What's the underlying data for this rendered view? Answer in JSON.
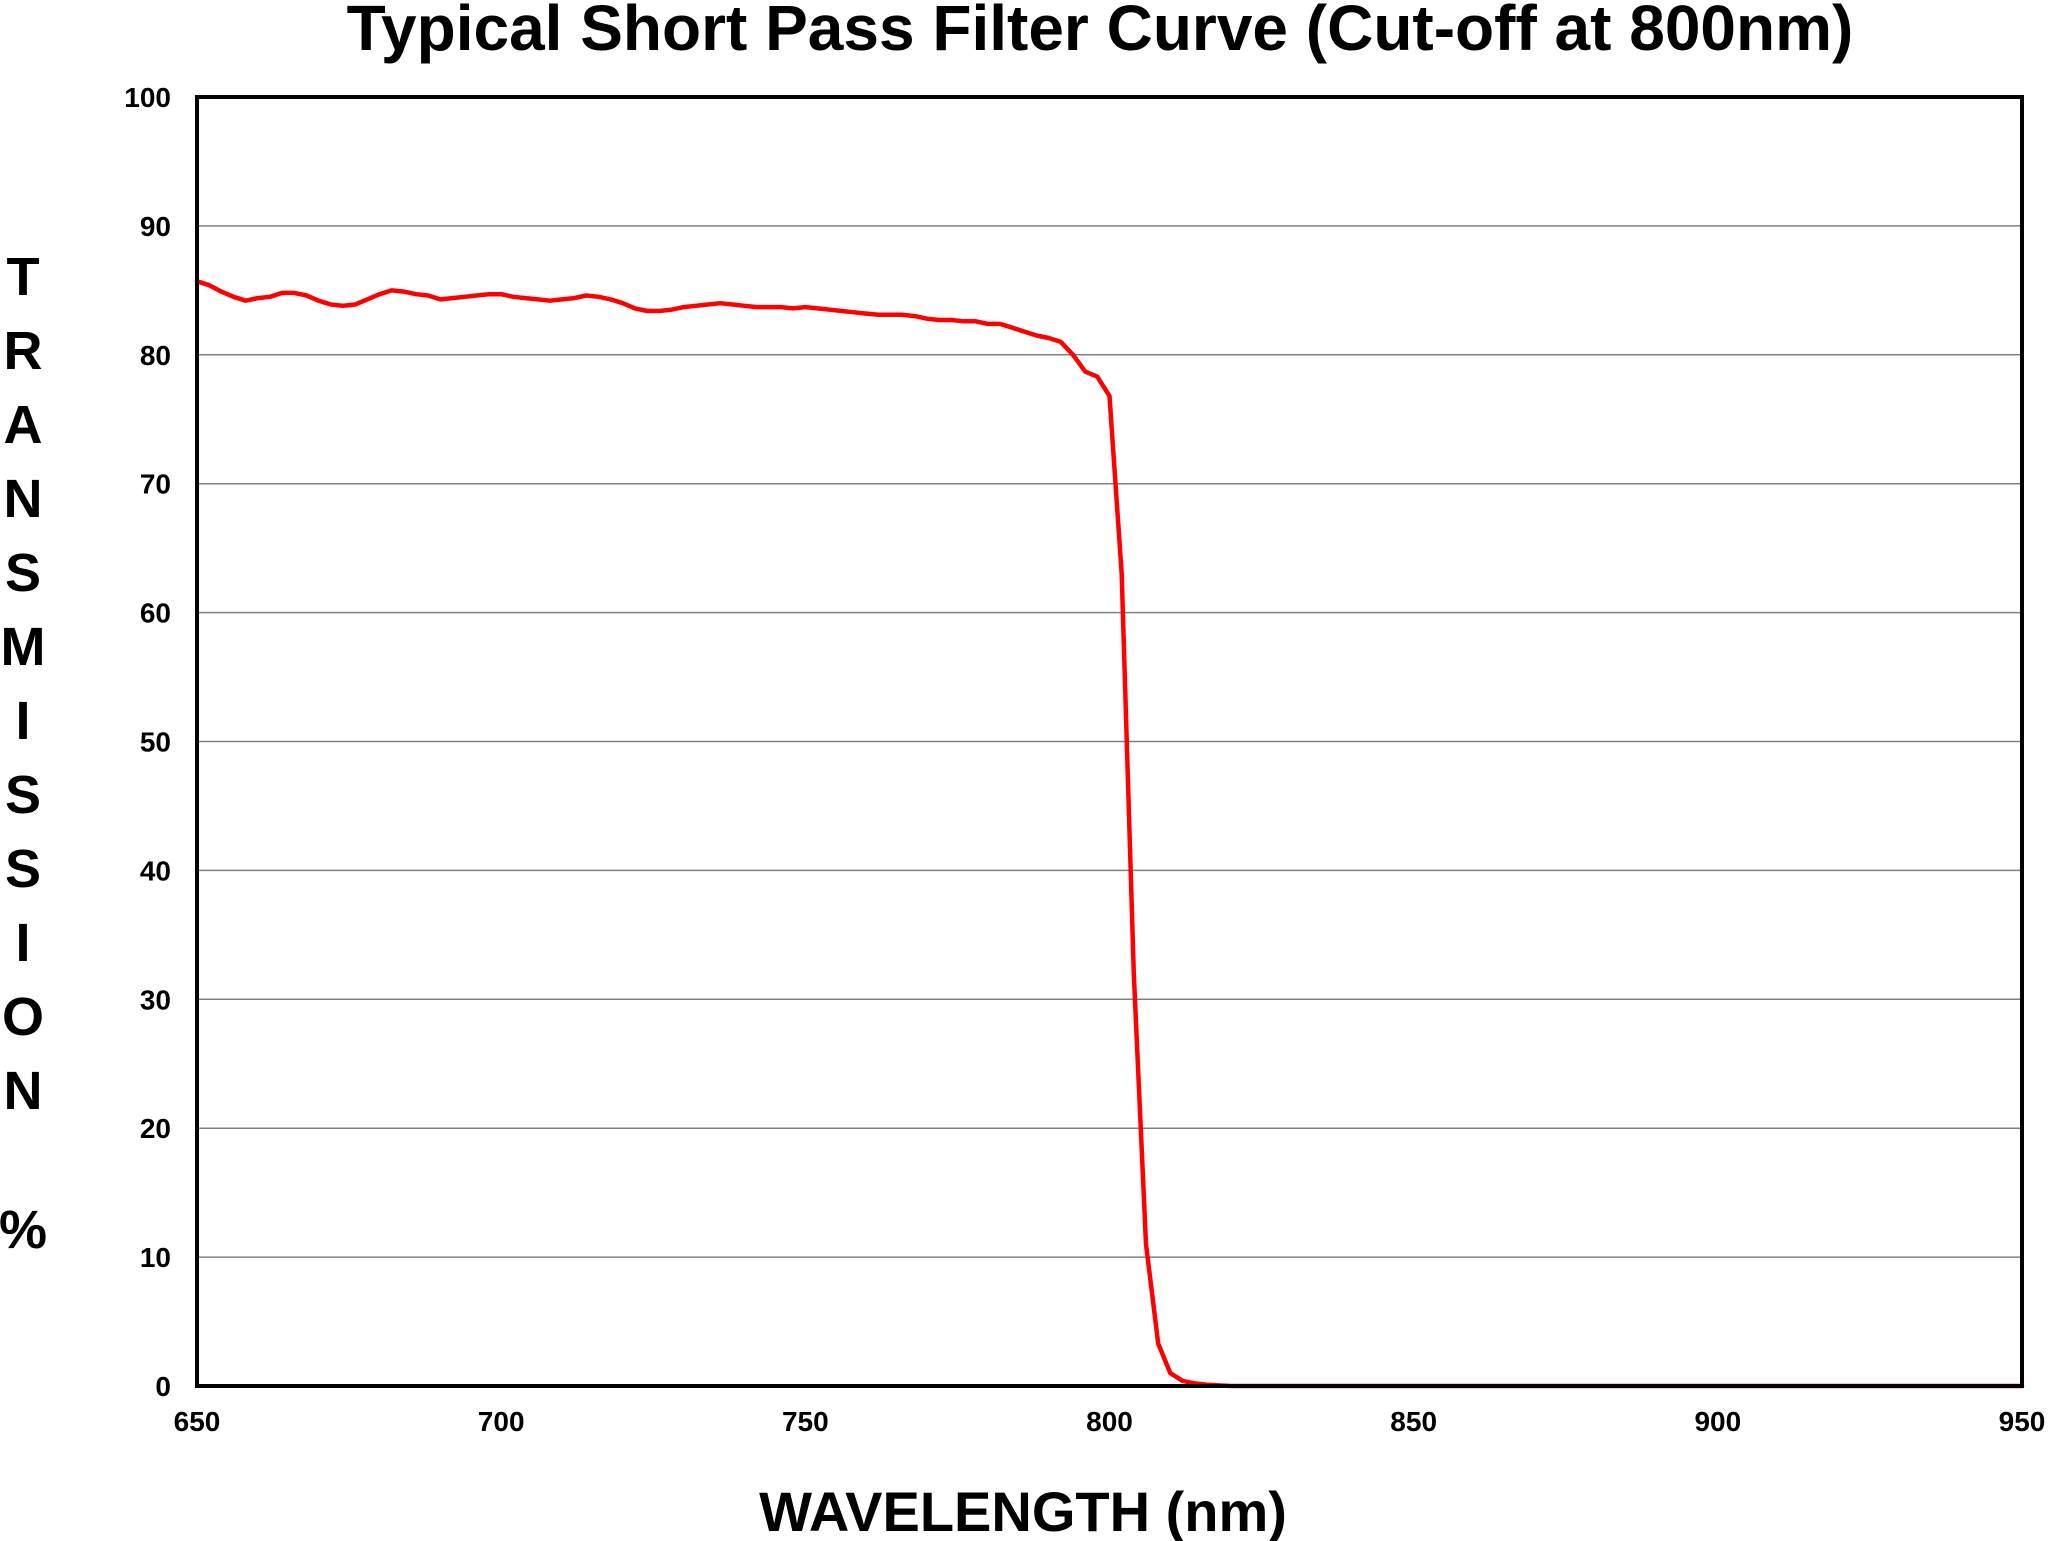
{
  "chart_data": {
    "type": "line",
    "title": "Typical Short Pass Filter Curve (Cut-off at 800nm)",
    "xlabel": "WAVELENGTH (nm)",
    "ylabel": "TRANSMISSION %",
    "ylabel_letters": [
      "T",
      "R",
      "A",
      "N",
      "S",
      "M",
      "I",
      "S",
      "S",
      "I",
      "O",
      "N",
      "%"
    ],
    "xlim": [
      650,
      950
    ],
    "ylim": [
      0,
      100
    ],
    "x_ticks": [
      650,
      700,
      750,
      800,
      850,
      900,
      950
    ],
    "y_ticks": [
      0,
      10,
      20,
      30,
      40,
      50,
      60,
      70,
      80,
      90,
      100
    ],
    "grid": "horizontal",
    "legend": "none",
    "series": [
      {
        "color": "#ff0000",
        "x": [
          650,
          652,
          654,
          656,
          658,
          660,
          662,
          664,
          666,
          668,
          670,
          672,
          674,
          676,
          678,
          680,
          682,
          684,
          686,
          688,
          690,
          692,
          694,
          696,
          698,
          700,
          702,
          704,
          706,
          708,
          710,
          712,
          714,
          716,
          718,
          720,
          722,
          724,
          726,
          728,
          730,
          732,
          734,
          736,
          738,
          740,
          742,
          744,
          746,
          748,
          750,
          752,
          754,
          756,
          758,
          760,
          762,
          764,
          766,
          768,
          770,
          772,
          774,
          776,
          778,
          780,
          782,
          784,
          786,
          788,
          790,
          792,
          794,
          796,
          798,
          800,
          802,
          804,
          806,
          808,
          810,
          812,
          814,
          816,
          818,
          820,
          830,
          840,
          850,
          860,
          870,
          880,
          890,
          900,
          910,
          920,
          930,
          940,
          950
        ],
        "y": [
          85.7,
          85.4,
          84.9,
          84.5,
          84.2,
          84.4,
          84.5,
          84.8,
          84.8,
          84.6,
          84.2,
          83.9,
          83.8,
          83.9,
          84.3,
          84.7,
          85.0,
          84.9,
          84.7,
          84.6,
          84.3,
          84.4,
          84.5,
          84.6,
          84.7,
          84.7,
          84.5,
          84.4,
          84.3,
          84.2,
          84.3,
          84.4,
          84.6,
          84.5,
          84.3,
          84.0,
          83.6,
          83.4,
          83.4,
          83.5,
          83.7,
          83.8,
          83.9,
          84.0,
          83.9,
          83.8,
          83.7,
          83.7,
          83.7,
          83.6,
          83.7,
          83.6,
          83.5,
          83.4,
          83.3,
          83.2,
          83.1,
          83.1,
          83.1,
          83.0,
          82.8,
          82.7,
          82.7,
          82.6,
          82.6,
          82.4,
          82.4,
          82.1,
          81.8,
          81.5,
          81.3,
          81.0,
          80.0,
          78.7,
          78.3,
          76.8,
          63.0,
          32.0,
          11.0,
          3.3,
          1.0,
          0.4,
          0.2,
          0.1,
          0.05,
          0.0,
          0.0,
          0.0,
          0.0,
          0.0,
          0.0,
          0.0,
          0.0,
          0.0,
          0.0,
          0.0,
          0.0,
          0.0,
          0.0
        ]
      }
    ]
  }
}
